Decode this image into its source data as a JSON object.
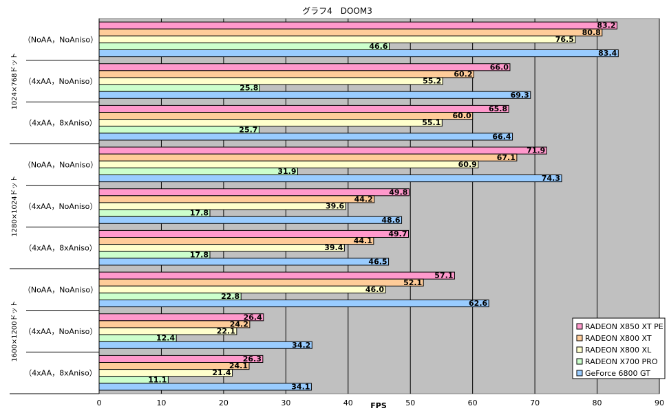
{
  "chart_data": {
    "type": "bar",
    "orientation": "horizontal",
    "title": "グラフ4　DOOM3",
    "xlabel": "FPS",
    "xlim": [
      0,
      90
    ],
    "xticks": [
      0,
      10,
      20,
      30,
      40,
      50,
      60,
      70,
      80,
      90
    ],
    "grid": true,
    "legend_position": "bottom-right",
    "groups": [
      {
        "label": "1024×768ドット",
        "categories": [
          "（NoAA，NoAniso）",
          "（4xAA，NoAniso）",
          "（4xAA，8xAniso）"
        ]
      },
      {
        "label": "1280×1024ドット",
        "categories": [
          "（NoAA，NoAniso）",
          "（4xAA，NoAniso）",
          "（4xAA，8xAniso）"
        ]
      },
      {
        "label": "1600×1200ドット",
        "categories": [
          "（NoAA，NoAniso）",
          "（4xAA，NoAniso）",
          "（4xAA，8xAniso）"
        ]
      }
    ],
    "series": [
      {
        "name": "RADEON X850 XT PE",
        "color": "#ff99cc",
        "values": [
          83.2,
          66.0,
          65.8,
          71.9,
          49.8,
          49.7,
          57.1,
          26.4,
          26.3
        ],
        "labels": [
          "83.2",
          "66.0",
          "65.8",
          "71.9",
          "49.8",
          "49.7",
          "57.1",
          "26.4",
          "26.3"
        ]
      },
      {
        "name": "RADEON X800 XT",
        "color": "#ffcc99",
        "values": [
          80.8,
          60.2,
          60.0,
          67.1,
          44.2,
          44.1,
          52.1,
          24.2,
          24.1
        ],
        "labels": [
          "80.8",
          "60.2",
          "60.0",
          "67.1",
          "44.2",
          "44.1",
          "52.1",
          "24.2",
          "24.1"
        ]
      },
      {
        "name": "RADEON X800 XL",
        "color": "#ffffcc",
        "values": [
          76.5,
          55.2,
          55.1,
          60.9,
          39.6,
          39.4,
          46.0,
          22.1,
          21.4
        ],
        "labels": [
          "76.5",
          "55.2",
          "55.1",
          "60.9",
          "39.6",
          "39.4",
          "46.0",
          "22.1",
          "21.4"
        ]
      },
      {
        "name": "RADEON X700 PRO",
        "color": "#ccffcc",
        "values": [
          46.6,
          25.8,
          25.7,
          31.9,
          17.8,
          17.8,
          22.8,
          12.4,
          11.1
        ],
        "labels": [
          "46.6",
          "25.8",
          "25.7",
          "31.9",
          "17.8",
          "17.8",
          "22.8",
          "12.4",
          "11.1"
        ]
      },
      {
        "name": "GeForce 6800 GT",
        "color": "#99ccff",
        "values": [
          83.4,
          69.3,
          66.4,
          74.3,
          48.6,
          46.5,
          62.6,
          34.2,
          34.1
        ],
        "labels": [
          "83.4",
          "69.3",
          "66.4",
          "74.3",
          "48.6",
          "46.5",
          "62.6",
          "34.2",
          "34.1"
        ]
      }
    ],
    "colors": {
      "plot_background": "#c0c0c0",
      "grid": "#000000"
    }
  }
}
